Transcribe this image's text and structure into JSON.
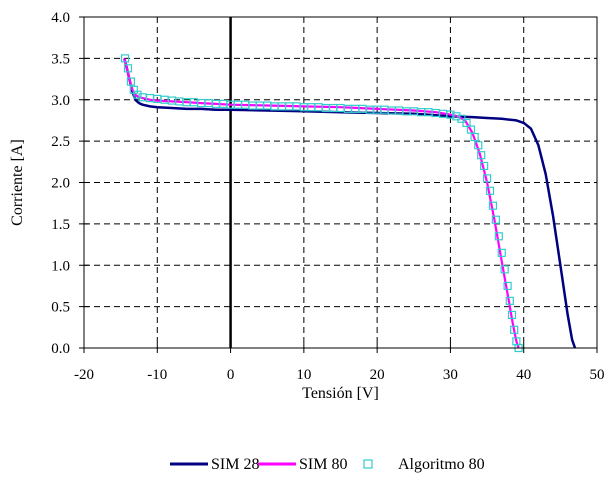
{
  "chart_data": {
    "type": "line",
    "xlabel": "Tensión [V]",
    "ylabel": "Corriente [A]",
    "xlim": [
      -20,
      50
    ],
    "ylim": [
      0,
      4
    ],
    "xticks": [
      -20,
      -10,
      0,
      10,
      20,
      30,
      40,
      50
    ],
    "xtick_labels": [
      "-20",
      "-10",
      "0",
      "10",
      "20",
      "30",
      "40",
      "50"
    ],
    "yticks": [
      0,
      0.5,
      1,
      1.5,
      2,
      2.5,
      3,
      3.5,
      4
    ],
    "ytick_labels": [
      "0.0",
      "0.5",
      "1.0",
      "1.5",
      "2.0",
      "2.5",
      "3.0",
      "3.5",
      "4.0"
    ],
    "grid": true,
    "legend_position": "bottom",
    "series": [
      {
        "name": "SIM 28",
        "style": "line",
        "color": "#000080",
        "x": [
          -14.5,
          -14.2,
          -13.8,
          -13.4,
          -13.0,
          -12.5,
          -12.0,
          -11.0,
          -10.0,
          -8.0,
          -6.0,
          -4.0,
          -2.0,
          0,
          5,
          10,
          15,
          20,
          25,
          30,
          33,
          35,
          37,
          39,
          40,
          41,
          42,
          43,
          44,
          45,
          46,
          46.6,
          47.0
        ],
        "y": [
          3.5,
          3.4,
          3.25,
          3.1,
          3.0,
          2.96,
          2.94,
          2.92,
          2.91,
          2.9,
          2.89,
          2.89,
          2.88,
          2.88,
          2.87,
          2.86,
          2.85,
          2.84,
          2.83,
          2.8,
          2.79,
          2.78,
          2.77,
          2.75,
          2.72,
          2.65,
          2.45,
          2.1,
          1.6,
          1.0,
          0.4,
          0.1,
          0.0
        ]
      },
      {
        "name": "SIM 80",
        "style": "line",
        "color": "#ff00ff",
        "x": [
          -14.5,
          -14.2,
          -13.8,
          -13.4,
          -13.0,
          -12.5,
          -12.0,
          -11.0,
          -10.0,
          -8.0,
          -6.0,
          -4.0,
          -2.0,
          0,
          5,
          10,
          15,
          20,
          25,
          28,
          30,
          31,
          32,
          33,
          34,
          35,
          36,
          37,
          38,
          38.5,
          39.0,
          39.3
        ],
        "y": [
          3.5,
          3.4,
          3.25,
          3.12,
          3.06,
          3.03,
          3.02,
          3.0,
          2.99,
          2.98,
          2.97,
          2.96,
          2.95,
          2.94,
          2.93,
          2.92,
          2.91,
          2.89,
          2.87,
          2.85,
          2.82,
          2.8,
          2.75,
          2.6,
          2.35,
          2.0,
          1.55,
          1.05,
          0.55,
          0.3,
          0.08,
          0.0
        ]
      },
      {
        "name": "Algoritmo 80",
        "style": "markers",
        "marker": "square-open",
        "color": "#33cccc",
        "x": [
          -14.4,
          -14.0,
          -13.6,
          -13.2,
          -12.7,
          -12.0,
          -11.0,
          -10.0,
          -9.0,
          -8.0,
          -7.0,
          -6.0,
          -5.0,
          -4.0,
          -3.0,
          -2.0,
          -1.0,
          0,
          1,
          2,
          3,
          4,
          5,
          6,
          7,
          8,
          9,
          10,
          11,
          12,
          13,
          14,
          15,
          16,
          17,
          18,
          19,
          20,
          21,
          22,
          23,
          24,
          25,
          26,
          27,
          28,
          29,
          30,
          30.8,
          31.5,
          32.2,
          32.8,
          33.3,
          33.8,
          34.2,
          34.6,
          35.0,
          35.4,
          35.8,
          36.2,
          36.6,
          37.0,
          37.4,
          37.8,
          38.1,
          38.4,
          38.7,
          39.0,
          39.3
        ],
        "y": [
          3.5,
          3.38,
          3.22,
          3.12,
          3.06,
          3.03,
          3.02,
          3.01,
          3.0,
          2.99,
          2.98,
          2.97,
          2.97,
          2.96,
          2.96,
          2.95,
          2.95,
          2.94,
          2.94,
          2.94,
          2.93,
          2.93,
          2.93,
          2.92,
          2.92,
          2.92,
          2.92,
          2.91,
          2.91,
          2.91,
          2.9,
          2.9,
          2.9,
          2.89,
          2.89,
          2.89,
          2.88,
          2.88,
          2.88,
          2.87,
          2.87,
          2.86,
          2.86,
          2.85,
          2.85,
          2.84,
          2.83,
          2.82,
          2.8,
          2.77,
          2.72,
          2.64,
          2.55,
          2.45,
          2.33,
          2.2,
          2.05,
          1.9,
          1.72,
          1.55,
          1.35,
          1.15,
          0.95,
          0.75,
          0.57,
          0.4,
          0.22,
          0.08,
          0.0
        ]
      }
    ]
  }
}
